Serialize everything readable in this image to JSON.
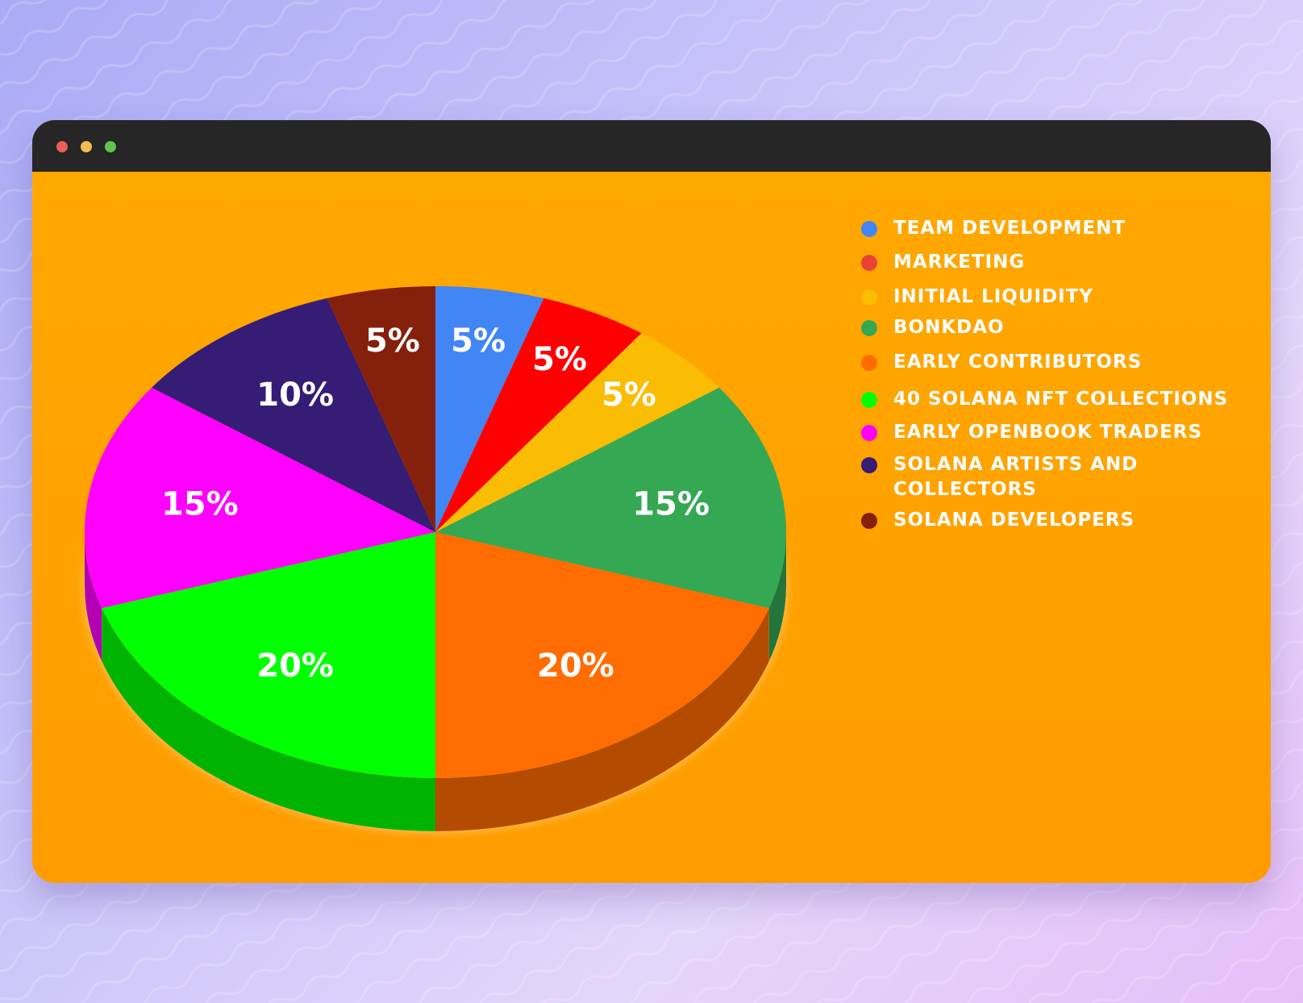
{
  "window": {
    "controls": [
      {
        "name": "close",
        "color": "#ec5f57"
      },
      {
        "name": "minimize",
        "color": "#f3bd4f"
      },
      {
        "name": "maximize",
        "color": "#5fc454"
      }
    ]
  },
  "chart_data": {
    "type": "pie",
    "style": "3d",
    "start_angle": "12 o'clock",
    "direction": "clockwise",
    "legend_position": "right",
    "slices": [
      {
        "label": "TEAM DEVELOPMENT",
        "value": 5,
        "display": "5%",
        "color": "#4285f4"
      },
      {
        "label": "MARKETING",
        "value": 5,
        "display": "5%",
        "color": "#ff0000"
      },
      {
        "label": "INITIAL LIQUIDITY",
        "value": 5,
        "display": "5%",
        "color": "#fbbc04"
      },
      {
        "label": "BONKDAO",
        "value": 15,
        "display": "15%",
        "color": "#34a853"
      },
      {
        "label": "EARLY CONTRIBUTORS",
        "value": 20,
        "display": "20%",
        "color": "#ff6d00"
      },
      {
        "label": "40 SOLANA NFT COLLECTIONS",
        "value": 20,
        "display": "20%",
        "color": "#00ff00"
      },
      {
        "label": "EARLY OPENBOOK TRADERS",
        "value": 15,
        "display": "15%",
        "color": "#ff00ff"
      },
      {
        "label": "SOLANA ARTISTS AND COLLECTORS",
        "value": 10,
        "display": "10%",
        "color": "#351c75"
      },
      {
        "label": "SOLANA DEVELOPERS",
        "value": 5,
        "display": "5%",
        "color": "#85200c"
      }
    ],
    "legend_colors": {
      "TEAM DEVELOPMENT": "#4285f4",
      "MARKETING": "#ea4335",
      "INITIAL LIQUIDITY": "#fbbc04",
      "BONKDAO": "#34a853",
      "EARLY CONTRIBUTORS": "#ff6d00",
      "40 SOLANA NFT COLLECTIONS": "#00ff00",
      "EARLY OPENBOOK TRADERS": "#ff00ff",
      "SOLANA ARTISTS AND COLLECTORS": "#351c75",
      "SOLANA DEVELOPERS": "#85200c"
    }
  }
}
